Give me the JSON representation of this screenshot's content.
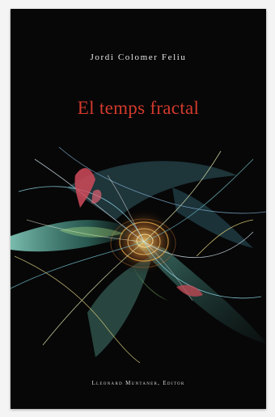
{
  "book": {
    "author": "Jordi Colomer Feliu",
    "title": "El temps fractal",
    "publisher": "Lleonard Muntaner, Editor"
  },
  "colors": {
    "cover_background": "#070707",
    "title_color": "#d33a2c",
    "author_color": "#e6e6e6"
  },
  "artwork": {
    "description_icon": "fractal-swirl-illustration"
  }
}
